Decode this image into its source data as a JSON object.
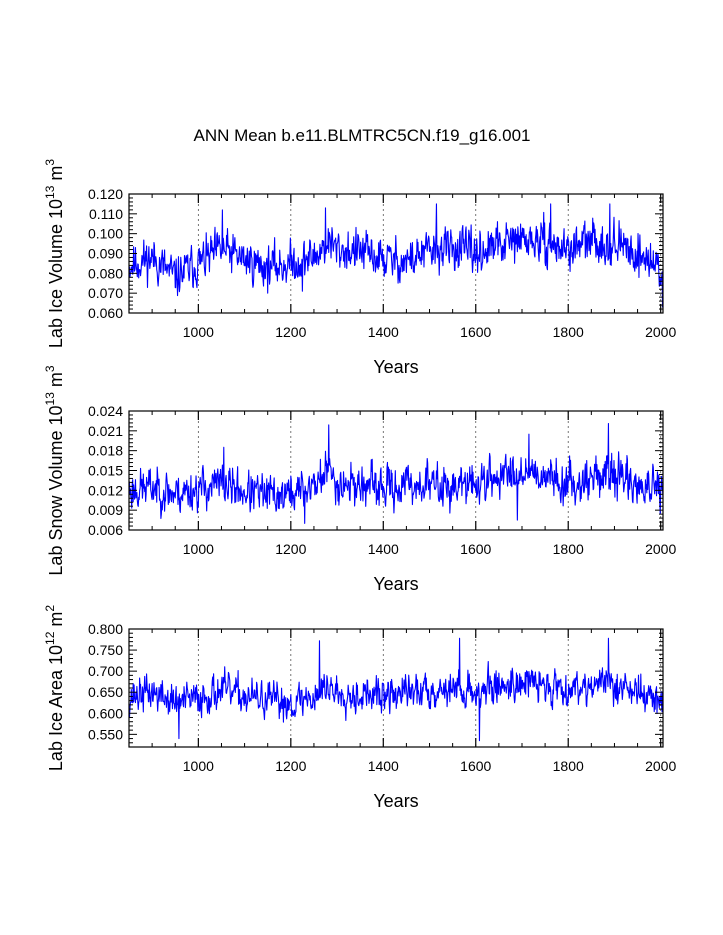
{
  "chart_data": {
    "title": "ANN Mean b.e11.BLMTRC5CN.f19_g16.001",
    "panels": [
      {
        "type": "line",
        "ylabel": {
          "base": "Lab Ice Volume 10",
          "exp1": "13",
          "mid": " m",
          "exp2": "3"
        },
        "xlabel": "Years",
        "xlim": [
          850,
          2005
        ],
        "ylim": [
          0.06,
          0.12
        ],
        "xticks": [
          "1000",
          "1200",
          "1400",
          "1600",
          "1800",
          "2000"
        ],
        "yticks": [
          "0.060",
          "0.070",
          "0.080",
          "0.090",
          "0.100",
          "0.110",
          "0.120"
        ],
        "series": [
          {
            "name": "Lab Ice Volume",
            "color": "#0000ff",
            "keypoints": [
              [
                850,
                0.084
              ],
              [
                900,
                0.088
              ],
              [
                950,
                0.078
              ],
              [
                1000,
                0.085
              ],
              [
                1050,
                0.092
              ],
              [
                1100,
                0.087
              ],
              [
                1150,
                0.083
              ],
              [
                1200,
                0.085
              ],
              [
                1250,
                0.088
              ],
              [
                1280,
                0.096
              ],
              [
                1300,
                0.092
              ],
              [
                1350,
                0.091
              ],
              [
                1400,
                0.087
              ],
              [
                1450,
                0.086
              ],
              [
                1500,
                0.091
              ],
              [
                1550,
                0.093
              ],
              [
                1600,
                0.09
              ],
              [
                1650,
                0.094
              ],
              [
                1700,
                0.097
              ],
              [
                1750,
                0.095
              ],
              [
                1800,
                0.092
              ],
              [
                1850,
                0.096
              ],
              [
                1900,
                0.095
              ],
              [
                1950,
                0.09
              ],
              [
                2005,
                0.082
              ]
            ],
            "noise": 0.0075,
            "seed": 11,
            "spikes": [
              [
                1052,
                0.112
              ],
              [
                1275,
                0.113
              ],
              [
                1515,
                0.115
              ],
              [
                1762,
                0.115
              ],
              [
                1890,
                0.115
              ],
              [
                1225,
                0.071
              ],
              [
                2004,
                0.063
              ]
            ]
          }
        ]
      },
      {
        "type": "line",
        "ylabel": {
          "base": "Lab Snow Volume 10",
          "exp1": "13",
          "mid": " m",
          "exp2": "3"
        },
        "xlabel": "Years",
        "xlim": [
          850,
          2005
        ],
        "ylim": [
          0.006,
          0.024
        ],
        "xticks": [
          "1000",
          "1200",
          "1400",
          "1600",
          "1800",
          "2000"
        ],
        "yticks": [
          "0.006",
          "0.009",
          "0.012",
          "0.015",
          "0.018",
          "0.021",
          "0.024"
        ],
        "series": [
          {
            "name": "Lab Snow Volume",
            "color": "#0000ff",
            "keypoints": [
              [
                850,
                0.012
              ],
              [
                900,
                0.0125
              ],
              [
                950,
                0.0115
              ],
              [
                1000,
                0.0122
              ],
              [
                1050,
                0.013
              ],
              [
                1100,
                0.0118
              ],
              [
                1150,
                0.0112
              ],
              [
                1200,
                0.0115
              ],
              [
                1250,
                0.0128
              ],
              [
                1280,
                0.015
              ],
              [
                1300,
                0.0132
              ],
              [
                1350,
                0.0128
              ],
              [
                1400,
                0.0122
              ],
              [
                1450,
                0.0128
              ],
              [
                1500,
                0.013
              ],
              [
                1550,
                0.0125
              ],
              [
                1600,
                0.013
              ],
              [
                1650,
                0.014
              ],
              [
                1700,
                0.015
              ],
              [
                1750,
                0.0145
              ],
              [
                1800,
                0.0128
              ],
              [
                1850,
                0.014
              ],
              [
                1900,
                0.0145
              ],
              [
                1950,
                0.0128
              ],
              [
                2005,
                0.0115
              ]
            ],
            "noise": 0.0022,
            "seed": 23,
            "spikes": [
              [
                1282,
                0.0219
              ],
              [
                1715,
                0.0205
              ],
              [
                1887,
                0.0221
              ],
              [
                1055,
                0.0185
              ],
              [
                1230,
                0.007
              ],
              [
                1690,
                0.0075
              ]
            ]
          }
        ]
      },
      {
        "type": "line",
        "ylabel": {
          "base": "Lab Ice Area 10",
          "exp1": "12",
          "mid": " m",
          "exp2": "2"
        },
        "xlabel": "Years",
        "xlim": [
          850,
          2005
        ],
        "ylim": [
          0.52,
          0.8
        ],
        "xticks": [
          "1000",
          "1200",
          "1400",
          "1600",
          "1800",
          "2000"
        ],
        "yticks": [
          "0.550",
          "0.600",
          "0.650",
          "0.700",
          "0.750",
          "0.800"
        ],
        "series": [
          {
            "name": "Lab Ice Area",
            "color": "#0000ff",
            "keypoints": [
              [
                850,
                0.64
              ],
              [
                900,
                0.65
              ],
              [
                950,
                0.625
              ],
              [
                1000,
                0.635
              ],
              [
                1050,
                0.655
              ],
              [
                1100,
                0.64
              ],
              [
                1150,
                0.63
              ],
              [
                1200,
                0.625
              ],
              [
                1250,
                0.64
              ],
              [
                1280,
                0.665
              ],
              [
                1300,
                0.65
              ],
              [
                1350,
                0.645
              ],
              [
                1400,
                0.64
              ],
              [
                1450,
                0.65
              ],
              [
                1500,
                0.655
              ],
              [
                1550,
                0.66
              ],
              [
                1600,
                0.65
              ],
              [
                1650,
                0.665
              ],
              [
                1700,
                0.675
              ],
              [
                1750,
                0.665
              ],
              [
                1800,
                0.66
              ],
              [
                1850,
                0.67
              ],
              [
                1900,
                0.67
              ],
              [
                1950,
                0.65
              ],
              [
                2005,
                0.625
              ]
            ],
            "noise": 0.03,
            "seed": 37,
            "spikes": [
              [
                1565,
                0.778
              ],
              [
                1887,
                0.778
              ],
              [
                1262,
                0.772
              ],
              [
                1608,
                0.535
              ],
              [
                958,
                0.54
              ]
            ]
          }
        ]
      }
    ]
  }
}
